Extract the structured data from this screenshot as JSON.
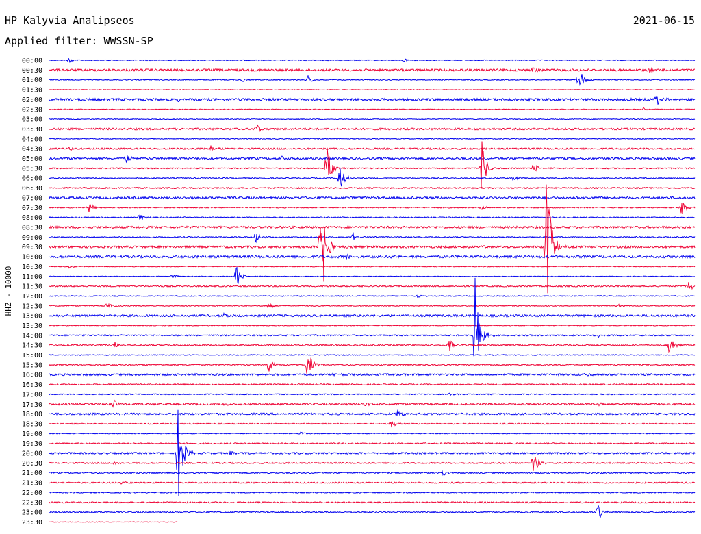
{
  "header": {
    "station": "HP Kalyvia Analipseos",
    "date": "2021-06-15",
    "filter_label": "Applied filter: WWSSN-SP"
  },
  "chart_data": {
    "type": "line",
    "title": "HP Kalyvia Analipseos",
    "subtitle": "Applied filter: WWSSN-SP",
    "ylabel": "HHZ - 10000",
    "row_labels": [
      "00:00",
      "00:30",
      "01:00",
      "01:30",
      "02:00",
      "02:30",
      "03:00",
      "03:30",
      "04:00",
      "04:30",
      "05:00",
      "05:30",
      "06:00",
      "06:30",
      "07:00",
      "07:30",
      "08:00",
      "08:30",
      "09:00",
      "09:30",
      "10:00",
      "10:30",
      "11:00",
      "11:30",
      "12:00",
      "12:30",
      "13:00",
      "13:30",
      "14:00",
      "14:30",
      "15:00",
      "15:30",
      "16:00",
      "16:30",
      "17:00",
      "17:30",
      "18:00",
      "18:30",
      "19:00",
      "19:30",
      "20:00",
      "20:30",
      "21:00",
      "21:30",
      "22:00",
      "22:30",
      "23:00",
      "23:30"
    ],
    "row_minutes": 30,
    "colors": [
      "#0000ee",
      "#ee0033"
    ],
    "last_row_fraction": 0.2,
    "noise": [
      0.6,
      1.6,
      0.7,
      0.5,
      1.8,
      0.6,
      0.6,
      1.4,
      0.6,
      1.2,
      1.5,
      0.9,
      0.8,
      1.0,
      1.6,
      0.8,
      0.8,
      1.6,
      0.8,
      1.6,
      1.8,
      0.6,
      0.5,
      1.0,
      0.7,
      0.7,
      1.6,
      0.6,
      1.0,
      1.0,
      0.7,
      0.9,
      1.4,
      1.0,
      0.8,
      1.4,
      1.4,
      0.8,
      0.6,
      1.0,
      1.3,
      1.0,
      1.0,
      1.0,
      0.8,
      1.0,
      1.0,
      0.5
    ],
    "events": [
      {
        "row": 0,
        "t": 0.03,
        "amp": 4
      },
      {
        "row": 0,
        "t": 0.55,
        "amp": 3
      },
      {
        "row": 1,
        "t": 0.75,
        "amp": 5
      },
      {
        "row": 1,
        "t": 0.93,
        "amp": 4
      },
      {
        "row": 2,
        "t": 0.3,
        "amp": 3
      },
      {
        "row": 2,
        "t": 0.4,
        "amp": 7
      },
      {
        "row": 2,
        "t": 0.82,
        "amp": 20
      },
      {
        "row": 4,
        "t": 0.94,
        "amp": 12
      },
      {
        "row": 4,
        "t": 0.2,
        "amp": 3
      },
      {
        "row": 5,
        "t": 0.92,
        "amp": 3
      },
      {
        "row": 7,
        "t": 0.32,
        "amp": 10
      },
      {
        "row": 9,
        "t": 0.03,
        "amp": 4
      },
      {
        "row": 9,
        "t": 0.25,
        "amp": 4
      },
      {
        "row": 10,
        "t": 0.12,
        "amp": 7
      },
      {
        "row": 10,
        "t": 0.36,
        "amp": 4
      },
      {
        "row": 11,
        "t": 0.43,
        "amp": 34
      },
      {
        "row": 11,
        "t": 0.67,
        "amp": 40
      },
      {
        "row": 11,
        "t": 0.75,
        "amp": 9
      },
      {
        "row": 12,
        "t": 0.45,
        "amp": 20
      },
      {
        "row": 12,
        "t": 0.72,
        "amp": 5
      },
      {
        "row": 15,
        "t": 0.06,
        "amp": 9
      },
      {
        "row": 15,
        "t": 0.67,
        "amp": 4
      },
      {
        "row": 15,
        "t": 0.98,
        "amp": 14
      },
      {
        "row": 16,
        "t": 0.14,
        "amp": 6
      },
      {
        "row": 18,
        "t": 0.32,
        "amp": 12
      },
      {
        "row": 18,
        "t": 0.47,
        "amp": 6
      },
      {
        "row": 19,
        "t": 0.42,
        "amp": 130
      },
      {
        "row": 19,
        "t": 0.67,
        "amp": 5
      },
      {
        "row": 19,
        "t": 0.77,
        "amp": 130
      },
      {
        "row": 20,
        "t": 0.46,
        "amp": 6
      },
      {
        "row": 20,
        "t": 0.53,
        "amp": 4
      },
      {
        "row": 21,
        "t": 0.03,
        "amp": 3
      },
      {
        "row": 22,
        "t": 0.19,
        "amp": 4
      },
      {
        "row": 22,
        "t": 0.29,
        "amp": 18
      },
      {
        "row": 23,
        "t": 0.99,
        "amp": 8
      },
      {
        "row": 24,
        "t": 0.57,
        "amp": 3
      },
      {
        "row": 25,
        "t": 0.09,
        "amp": 6
      },
      {
        "row": 25,
        "t": 0.34,
        "amp": 8
      },
      {
        "row": 25,
        "t": 0.88,
        "amp": 3
      },
      {
        "row": 26,
        "t": 0.27,
        "amp": 3
      },
      {
        "row": 28,
        "t": 0.66,
        "amp": 95
      },
      {
        "row": 28,
        "t": 0.85,
        "amp": 3
      },
      {
        "row": 29,
        "t": 0.1,
        "amp": 6
      },
      {
        "row": 29,
        "t": 0.62,
        "amp": 9
      },
      {
        "row": 29,
        "t": 0.96,
        "amp": 14
      },
      {
        "row": 31,
        "t": 0.34,
        "amp": 14
      },
      {
        "row": 31,
        "t": 0.4,
        "amp": 20
      },
      {
        "row": 32,
        "t": 0.44,
        "amp": 4
      },
      {
        "row": 32,
        "t": 0.83,
        "amp": 3
      },
      {
        "row": 34,
        "t": 0.62,
        "amp": 3
      },
      {
        "row": 35,
        "t": 0.1,
        "amp": 7
      },
      {
        "row": 35,
        "t": 0.27,
        "amp": 3
      },
      {
        "row": 35,
        "t": 0.49,
        "amp": 4
      },
      {
        "row": 35,
        "t": 0.85,
        "amp": 3
      },
      {
        "row": 36,
        "t": 0.54,
        "amp": 6
      },
      {
        "row": 37,
        "t": 0.53,
        "amp": 6
      },
      {
        "row": 38,
        "t": 0.39,
        "amp": 3
      },
      {
        "row": 40,
        "t": 0.2,
        "amp": 80
      },
      {
        "row": 40,
        "t": 0.28,
        "amp": 4
      },
      {
        "row": 41,
        "t": 0.75,
        "amp": 18
      },
      {
        "row": 41,
        "t": 0.1,
        "amp": 3
      },
      {
        "row": 42,
        "t": 0.61,
        "amp": 4
      },
      {
        "row": 43,
        "t": 0.11,
        "amp": 3
      },
      {
        "row": 46,
        "t": 0.85,
        "amp": 12
      }
    ]
  }
}
